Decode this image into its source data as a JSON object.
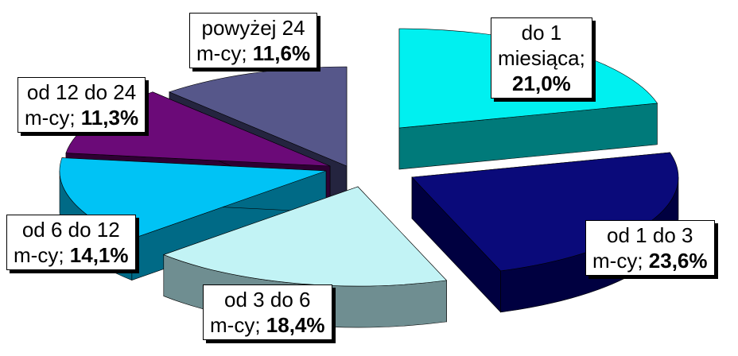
{
  "chart_data": {
    "type": "pie",
    "title": "",
    "style": "3d-exploded",
    "value_format": "percent with comma decimal separator",
    "slices": [
      {
        "label_lines": [
          "do 1",
          "miesiąca;"
        ],
        "value_text": "21,0%",
        "value": 21.0,
        "top_color": "#00F0F0",
        "side_color": "#007A7A"
      },
      {
        "label_lines": [
          "od 1 do 3",
          "m-cy;"
        ],
        "value_text": "23,6%",
        "value": 23.6,
        "top_color": "#0A0A7A",
        "side_color": "#000040"
      },
      {
        "label_lines": [
          "od 3 do 6",
          "m-cy;"
        ],
        "value_text": "18,4%",
        "value": 18.4,
        "top_color": "#C2F3F5",
        "side_color": "#6F8E91"
      },
      {
        "label_lines": [
          "od 6 do 12",
          "m-cy;"
        ],
        "value_text": "14,1%",
        "value": 14.1,
        "top_color": "#00C3F5",
        "side_color": "#006A86"
      },
      {
        "label_lines": [
          "od 12 do 24",
          "m-cy;"
        ],
        "value_text": "11,3%",
        "value": 11.3,
        "top_color": "#6B0A78",
        "side_color": "#2E0033"
      },
      {
        "label_lines": [
          "powyżej 24",
          "m-cy;"
        ],
        "value_text": "11,6%",
        "value": 11.6,
        "top_color": "#56578A",
        "side_color": "#24243F"
      }
    ]
  }
}
